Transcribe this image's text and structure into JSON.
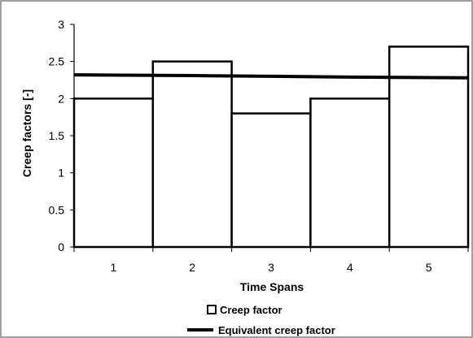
{
  "chart_data": {
    "type": "bar",
    "categories": [
      "1",
      "2",
      "3",
      "4",
      "5"
    ],
    "series": [
      {
        "name": "Creep factor",
        "type": "bar",
        "values": [
          2.0,
          2.5,
          1.8,
          2.0,
          2.7
        ]
      },
      {
        "name": "Equivalent creep factor",
        "type": "line",
        "values": [
          2.32,
          2.31,
          2.3,
          2.29,
          2.28
        ]
      }
    ],
    "xlabel": "Time Spans",
    "ylabel": "Creep factors [-]",
    "ylim": [
      0,
      3
    ],
    "yticks": [
      "0",
      "0.5",
      "1",
      "1.5",
      "2",
      "2.5",
      "3"
    ],
    "grid": false,
    "legend": {
      "position": "bottom",
      "entries": [
        "Creep factor",
        "Equivalent creep factor"
      ]
    },
    "colors": {
      "bar_stroke": "#000000",
      "bar_fill": "#ffffff",
      "line": "#000000",
      "frame": "#808080"
    }
  }
}
